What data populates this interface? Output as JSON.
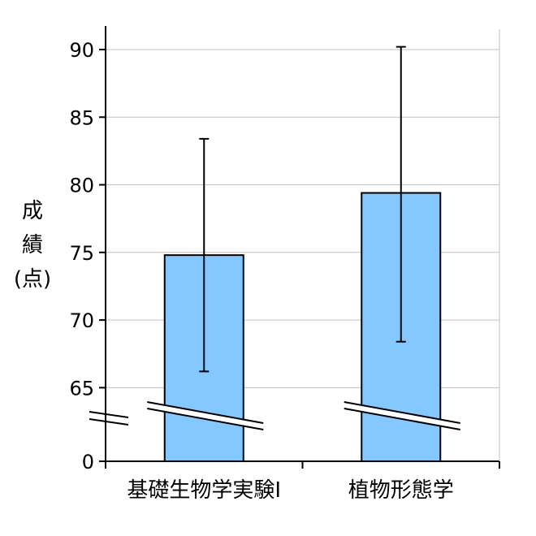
{
  "chart_data": {
    "type": "bar",
    "categories": [
      "基礎生物学実験Ⅰ",
      "植物形態学"
    ],
    "values": [
      74.8,
      79.4
    ],
    "error_low": [
      66.2,
      68.4
    ],
    "error_high": [
      83.4,
      90.2
    ],
    "ylabel": [
      "成",
      "績",
      "(点)"
    ],
    "yticks": [
      {
        "value": 90,
        "label": "90"
      },
      {
        "value": 85,
        "label": "85"
      },
      {
        "value": 80,
        "label": "80"
      },
      {
        "value": 75,
        "label": "75"
      },
      {
        "value": 70,
        "label": "70"
      },
      {
        "value": 65,
        "label": "65"
      },
      {
        "value": 0,
        "label": "0"
      }
    ],
    "axis_break": true,
    "grid": true,
    "colors": {
      "bar_fill": "#85c7ff",
      "bar_stroke": "#000000",
      "grid": "#c0c0c0"
    }
  }
}
